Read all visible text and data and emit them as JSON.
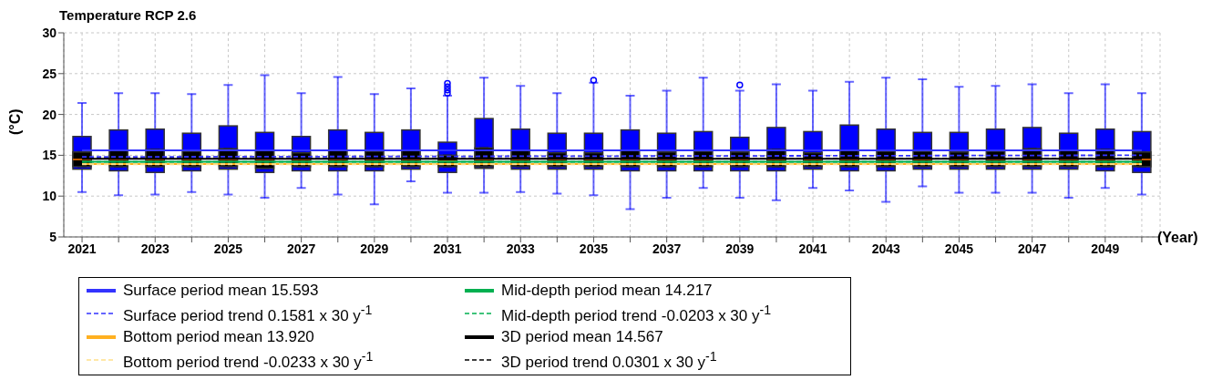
{
  "chart_data": {
    "type": "box",
    "title": "Temperature RCP 2.6",
    "xlabel": "(Year)",
    "ylabel": "(°C)",
    "categories": [
      "2021",
      null,
      "2023",
      null,
      "2025",
      null,
      "2027",
      null,
      "2029",
      null,
      "2031",
      null,
      "2033",
      null,
      "2035",
      null,
      "2037",
      null,
      "2039",
      null,
      "2041",
      null,
      "2043",
      null,
      "2045",
      null,
      "2047",
      null,
      "2049",
      null
    ],
    "ylim": [
      5,
      30
    ],
    "yticks": [
      5,
      10,
      15,
      20,
      25,
      30
    ],
    "grid": true,
    "legend": "bottom",
    "series": [
      {
        "color": "#0000ff",
        "boxes": [
          {
            "low": 10.5,
            "q1": 13.3,
            "median": 14.5,
            "q3": 17.3,
            "high": 21.4
          },
          {
            "low": 10.1,
            "q1": 13.1,
            "median": 14.5,
            "q3": 18.1,
            "high": 22.6
          },
          {
            "low": 10.2,
            "q1": 12.9,
            "median": 14.5,
            "q3": 18.2,
            "high": 22.6
          },
          {
            "low": 10.5,
            "q1": 13.1,
            "median": 14.5,
            "q3": 17.7,
            "high": 22.5
          },
          {
            "low": 10.2,
            "q1": 13.3,
            "median": 14.5,
            "q3": 18.6,
            "high": 23.6
          },
          {
            "low": 9.8,
            "q1": 12.9,
            "median": 14.5,
            "q3": 17.8,
            "high": 24.8
          },
          {
            "low": 11.0,
            "q1": 13.1,
            "median": 14.5,
            "q3": 17.3,
            "high": 22.6
          },
          {
            "low": 10.2,
            "q1": 13.1,
            "median": 14.5,
            "q3": 18.1,
            "high": 24.6
          },
          {
            "low": 9.0,
            "q1": 13.1,
            "median": 14.5,
            "q3": 17.8,
            "high": 22.5
          },
          {
            "low": 11.8,
            "q1": 13.3,
            "median": 14.5,
            "q3": 18.1,
            "high": 23.2
          },
          {
            "low": 10.4,
            "q1": 12.9,
            "median": 14.5,
            "q3": 16.6,
            "high": 22.3,
            "outliers": [
              22.6,
              23.0,
              23.4,
              23.8
            ]
          },
          {
            "low": 10.4,
            "q1": 13.4,
            "median": 14.5,
            "q3": 19.5,
            "high": 24.5
          },
          {
            "low": 10.5,
            "q1": 13.3,
            "median": 14.5,
            "q3": 18.2,
            "high": 23.5
          },
          {
            "low": 10.3,
            "q1": 13.3,
            "median": 14.5,
            "q3": 17.7,
            "high": 22.6
          },
          {
            "low": 10.1,
            "q1": 13.3,
            "median": 14.5,
            "q3": 17.7,
            "high": 23.9,
            "outliers": [
              24.2
            ]
          },
          {
            "low": 8.4,
            "q1": 13.1,
            "median": 14.5,
            "q3": 18.1,
            "high": 22.3
          },
          {
            "low": 9.8,
            "q1": 13.1,
            "median": 14.5,
            "q3": 17.7,
            "high": 22.9
          },
          {
            "low": 11.0,
            "q1": 13.1,
            "median": 14.5,
            "q3": 17.9,
            "high": 24.5
          },
          {
            "low": 9.8,
            "q1": 13.1,
            "median": 14.5,
            "q3": 17.2,
            "high": 22.9,
            "outliers": [
              23.6
            ]
          },
          {
            "low": 9.5,
            "q1": 13.1,
            "median": 14.5,
            "q3": 18.4,
            "high": 23.7
          },
          {
            "low": 11.0,
            "q1": 13.3,
            "median": 14.5,
            "q3": 17.9,
            "high": 22.9
          },
          {
            "low": 10.7,
            "q1": 13.1,
            "median": 14.5,
            "q3": 18.7,
            "high": 24.0
          },
          {
            "low": 9.3,
            "q1": 13.1,
            "median": 14.5,
            "q3": 18.2,
            "high": 24.5
          },
          {
            "low": 11.2,
            "q1": 13.3,
            "median": 14.5,
            "q3": 17.8,
            "high": 24.3
          },
          {
            "low": 10.4,
            "q1": 13.3,
            "median": 14.5,
            "q3": 17.8,
            "high": 23.4
          },
          {
            "low": 10.4,
            "q1": 13.3,
            "median": 14.5,
            "q3": 18.2,
            "high": 23.5
          },
          {
            "low": 10.4,
            "q1": 13.3,
            "median": 14.5,
            "q3": 18.4,
            "high": 23.7
          },
          {
            "low": 9.8,
            "q1": 13.3,
            "median": 14.5,
            "q3": 17.7,
            "high": 22.6
          },
          {
            "low": 11.0,
            "q1": 13.1,
            "median": 14.5,
            "q3": 18.2,
            "high": 23.7
          },
          {
            "low": 10.2,
            "q1": 12.9,
            "median": 14.5,
            "q3": 17.9,
            "high": 22.6
          }
        ]
      },
      {
        "color": "#000000",
        "boxes": [
          {
            "low": 13.6,
            "q1": 13.6,
            "median": 14.5,
            "q3": 15.4,
            "high": 15.4
          },
          {
            "low": 13.6,
            "q1": 13.6,
            "median": 14.5,
            "q3": 15.6,
            "high": 15.6
          },
          {
            "low": 13.6,
            "q1": 13.6,
            "median": 14.5,
            "q3": 15.7,
            "high": 15.7
          },
          {
            "low": 13.6,
            "q1": 13.6,
            "median": 14.5,
            "q3": 15.5,
            "high": 15.5
          },
          {
            "low": 13.6,
            "q1": 13.6,
            "median": 14.5,
            "q3": 15.8,
            "high": 15.8
          },
          {
            "low": 13.4,
            "q1": 13.4,
            "median": 14.5,
            "q3": 15.6,
            "high": 15.6
          },
          {
            "low": 13.6,
            "q1": 13.6,
            "median": 14.5,
            "q3": 15.3,
            "high": 15.3
          },
          {
            "low": 13.6,
            "q1": 13.6,
            "median": 14.5,
            "q3": 15.6,
            "high": 15.6
          },
          {
            "low": 13.6,
            "q1": 13.6,
            "median": 14.5,
            "q3": 15.5,
            "high": 15.5
          },
          {
            "low": 13.6,
            "q1": 13.6,
            "median": 14.5,
            "q3": 15.6,
            "high": 15.6
          },
          {
            "low": 13.6,
            "q1": 13.6,
            "median": 14.3,
            "q3": 15.0,
            "high": 15.0
          },
          {
            "low": 13.6,
            "q1": 13.6,
            "median": 14.5,
            "q3": 15.9,
            "high": 15.9
          },
          {
            "low": 13.6,
            "q1": 13.6,
            "median": 14.5,
            "q3": 15.6,
            "high": 15.6
          },
          {
            "low": 13.6,
            "q1": 13.6,
            "median": 14.5,
            "q3": 15.3,
            "high": 15.3
          },
          {
            "low": 13.6,
            "q1": 13.6,
            "median": 14.5,
            "q3": 15.3,
            "high": 15.3
          },
          {
            "low": 13.6,
            "q1": 13.6,
            "median": 14.5,
            "q3": 15.6,
            "high": 15.6
          },
          {
            "low": 13.6,
            "q1": 13.6,
            "median": 14.5,
            "q3": 15.4,
            "high": 15.4
          },
          {
            "low": 13.6,
            "q1": 13.6,
            "median": 14.5,
            "q3": 15.5,
            "high": 15.5
          },
          {
            "low": 13.6,
            "q1": 13.6,
            "median": 14.5,
            "q3": 15.4,
            "high": 15.4
          },
          {
            "low": 13.6,
            "q1": 13.6,
            "median": 14.5,
            "q3": 15.7,
            "high": 15.7
          },
          {
            "low": 13.6,
            "q1": 13.6,
            "median": 14.5,
            "q3": 15.3,
            "high": 15.3
          },
          {
            "low": 13.6,
            "q1": 13.6,
            "median": 14.5,
            "q3": 15.6,
            "high": 15.6
          },
          {
            "low": 13.6,
            "q1": 13.6,
            "median": 14.5,
            "q3": 15.5,
            "high": 15.5
          },
          {
            "low": 13.6,
            "q1": 13.6,
            "median": 14.5,
            "q3": 15.5,
            "high": 15.5
          },
          {
            "low": 13.6,
            "q1": 13.6,
            "median": 14.5,
            "q3": 15.4,
            "high": 15.4
          },
          {
            "low": 13.6,
            "q1": 13.6,
            "median": 14.5,
            "q3": 15.5,
            "high": 15.5
          },
          {
            "low": 13.6,
            "q1": 13.6,
            "median": 14.5,
            "q3": 15.8,
            "high": 15.8
          },
          {
            "low": 13.6,
            "q1": 13.6,
            "median": 14.5,
            "q3": 15.6,
            "high": 15.6
          },
          {
            "low": 13.6,
            "q1": 13.6,
            "median": 14.5,
            "q3": 15.7,
            "high": 15.7
          },
          {
            "low": 13.6,
            "q1": 13.6,
            "median": 14.5,
            "q3": 15.4,
            "high": 15.4
          }
        ]
      },
      {
        "type": "line",
        "name": "Surface period mean 15.593",
        "color": "#3333ff",
        "line_style": "solid",
        "values": [
          15.593,
          15.593,
          15.593,
          15.593,
          15.593,
          15.593,
          15.593,
          15.593,
          15.593,
          15.593,
          15.593,
          15.593,
          15.593,
          15.593,
          15.593,
          15.593,
          15.593,
          15.593,
          15.593,
          15.593,
          15.593,
          15.593,
          15.593,
          15.593,
          15.593,
          15.593,
          15.593,
          15.593,
          15.593,
          15.593
        ]
      },
      {
        "type": "line",
        "name": "Mid-depth period mean 14.217",
        "color": "#00b050",
        "line_style": "solid",
        "values": [
          14.217,
          14.217,
          14.217,
          14.217,
          14.217,
          14.217,
          14.217,
          14.217,
          14.217,
          14.217,
          14.217,
          14.217,
          14.217,
          14.217,
          14.217,
          14.217,
          14.217,
          14.217,
          14.217,
          14.217,
          14.217,
          14.217,
          14.217,
          14.217,
          14.217,
          14.217,
          14.217,
          14.217,
          14.217,
          14.217
        ]
      },
      {
        "type": "line",
        "name": "Surface period trend 0.1581 x 30 y$^{-1}$",
        "color": "#3333ff",
        "line_style": "dashed",
        "values": [
          14.8,
          null,
          null,
          null,
          null,
          null,
          null,
          null,
          null,
          null,
          null,
          null,
          null,
          null,
          null,
          null,
          null,
          null,
          null,
          null,
          null,
          null,
          null,
          null,
          null,
          null,
          null,
          null,
          null,
          15.0
        ]
      },
      {
        "type": "line",
        "name": "Mid-depth period trend -0.0203 x 30 y$^{-1}$",
        "color": "#00b050",
        "line_style": "dashed",
        "values": [
          14.2,
          null,
          null,
          null,
          null,
          null,
          null,
          null,
          null,
          null,
          null,
          null,
          null,
          null,
          null,
          null,
          null,
          null,
          null,
          null,
          null,
          null,
          null,
          null,
          null,
          null,
          null,
          null,
          null,
          14.2
        ]
      },
      {
        "type": "line",
        "name": "Bottom period mean 13.920",
        "color": "#ffb020",
        "line_style": "solid",
        "values": [
          13.92,
          13.92,
          13.92,
          13.92,
          13.92,
          13.92,
          13.92,
          13.92,
          13.92,
          13.92,
          13.92,
          13.92,
          13.92,
          13.92,
          13.92,
          13.92,
          13.92,
          13.92,
          13.92,
          13.92,
          13.92,
          13.92,
          13.92,
          13.92,
          13.92,
          13.92,
          13.92,
          13.92,
          13.92,
          13.92
        ]
      },
      {
        "type": "line",
        "name": "3D period mean 14.567",
        "color": "#000000",
        "line_style": "solid",
        "values": [
          14.567,
          14.567,
          14.567,
          14.567,
          14.567,
          14.567,
          14.567,
          14.567,
          14.567,
          14.567,
          14.567,
          14.567,
          14.567,
          14.567,
          14.567,
          14.567,
          14.567,
          14.567,
          14.567,
          14.567,
          14.567,
          14.567,
          14.567,
          14.567,
          14.567,
          14.567,
          14.567,
          14.567,
          14.567,
          14.567
        ]
      },
      {
        "type": "line",
        "name": "Bottom period trend -0.0233 x 30 y$^{-1}$",
        "color": "#ffe08a",
        "line_style": "dashed",
        "values": [
          13.9,
          null,
          null,
          null,
          null,
          null,
          null,
          null,
          null,
          null,
          null,
          null,
          null,
          null,
          null,
          null,
          null,
          null,
          null,
          null,
          null,
          null,
          null,
          null,
          null,
          null,
          null,
          null,
          null,
          13.9
        ]
      },
      {
        "type": "line",
        "name": "3D period trend 0.0301 x 30 y$^{-1}$",
        "color": "#000000",
        "line_style": "dashed",
        "values": [
          14.6,
          null,
          null,
          null,
          null,
          null,
          null,
          null,
          null,
          null,
          null,
          null,
          null,
          null,
          null,
          null,
          null,
          null,
          null,
          null,
          null,
          null,
          null,
          null,
          null,
          null,
          null,
          null,
          null,
          14.6
        ]
      }
    ]
  }
}
